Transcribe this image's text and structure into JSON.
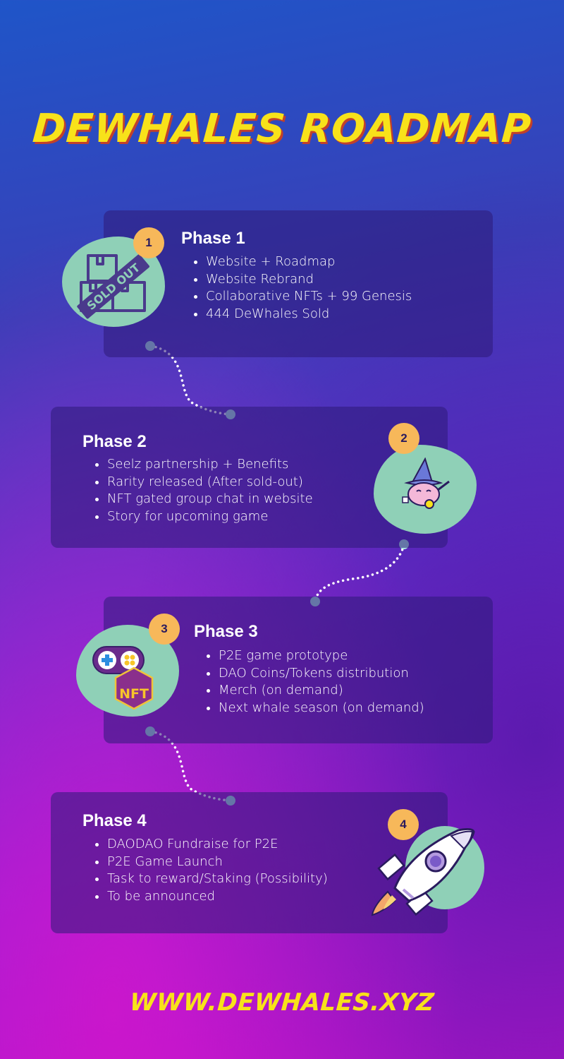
{
  "title": "DEWHALES ROADMAP",
  "phases": [
    {
      "number": "1",
      "title": "Phase 1",
      "items": [
        "Website + Roadmap",
        "Website Rebrand",
        "Collaborative NFTs + 99 Genesis",
        "444 DeWhales Sold"
      ],
      "icon": "sold-out-boxes-icon",
      "icon_text": "SOLD OUT"
    },
    {
      "number": "2",
      "title": "Phase 2",
      "items": [
        "Seelz partnership + Benefits",
        "Rarity released (After sold-out)",
        "NFT gated group chat in website",
        "Story for upcoming game"
      ],
      "icon": "wizard-seal-icon"
    },
    {
      "number": "3",
      "title": "Phase 3",
      "items": [
        "P2E game prototype",
        "DAO Coins/Tokens distribution",
        "Merch (on demand)",
        "Next whale season (on demand)"
      ],
      "icon": "nft-gamepad-icon",
      "icon_text": "NFT"
    },
    {
      "number": "4",
      "title": "Phase 4",
      "items": [
        "DAODAO Fundraise for P2E",
        "P2E Game Launch",
        "Task to reward/Staking (Possibility)",
        "To be announced"
      ],
      "icon": "rocket-icon"
    }
  ],
  "footer": "WWW.DEWHALES.XYZ",
  "colors": {
    "title": "#f8e21a",
    "badge": "#f7b85a",
    "blob": "#8fd0b7",
    "card": "#2d1978",
    "connector": "#a8e6e0"
  }
}
